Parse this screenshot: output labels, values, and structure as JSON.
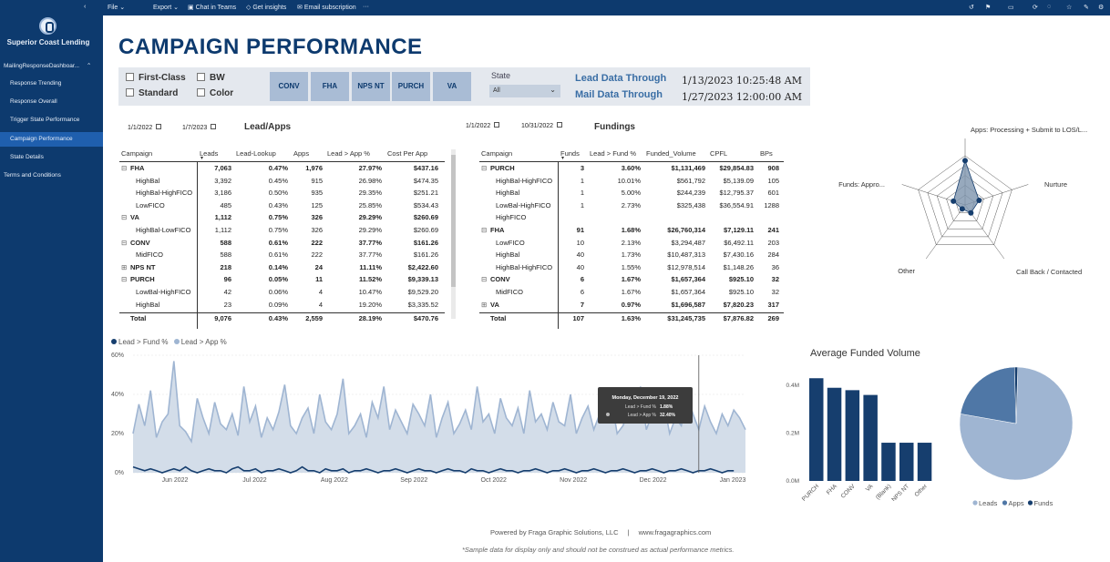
{
  "toolbar": {
    "file": "File",
    "export": "Export",
    "chat": "Chat in Teams",
    "insights": "Get insights",
    "email": "Email subscription",
    "more": "···"
  },
  "sidebar": {
    "brand": "Superior Coast Lending",
    "group": "MailingResponseDashboar...",
    "items": [
      "Response Trending",
      "Response Overall",
      "Trigger State Performance",
      "Campaign Performance",
      "State Details",
      "Terms and Conditions"
    ]
  },
  "page": {
    "title": "CAMPAIGN PERFORMANCE"
  },
  "filters": {
    "checks": [
      "First-Class",
      "Standard",
      "BW",
      "Color"
    ],
    "segments": [
      "CONV",
      "FHA",
      "NPS NT",
      "PURCH",
      "VA"
    ],
    "state_label": "State",
    "state_value": "All",
    "lead_label": "Lead Data Through",
    "lead_value": "1/13/2023 10:25:48 AM",
    "mail_label": "Mail Data Through",
    "mail_value": "1/27/2023 12:00:00 AM"
  },
  "leads_table": {
    "date_from": "1/1/2022",
    "date_to": "1/7/2023",
    "title": "Lead/Apps",
    "headers": [
      "Campaign",
      "Leads",
      "Lead-Lookup",
      "Apps",
      "Lead > App %",
      "Cost Per App"
    ],
    "rows": [
      {
        "c": "FHA",
        "v": [
          "7,063",
          "0.47%",
          "1,976",
          "27.97%",
          "$437.16"
        ],
        "b": true,
        "e": "⊟"
      },
      {
        "c": "HighBal",
        "v": [
          "3,392",
          "0.45%",
          "915",
          "26.98%",
          "$474.35"
        ],
        "b": false,
        "e": ""
      },
      {
        "c": "HighBal-HighFICO",
        "v": [
          "3,186",
          "0.50%",
          "935",
          "29.35%",
          "$251.21"
        ],
        "b": false,
        "e": ""
      },
      {
        "c": "LowFICO",
        "v": [
          "485",
          "0.43%",
          "125",
          "25.85%",
          "$534.43"
        ],
        "b": false,
        "e": ""
      },
      {
        "c": "VA",
        "v": [
          "1,112",
          "0.75%",
          "326",
          "29.29%",
          "$260.69"
        ],
        "b": true,
        "e": "⊟"
      },
      {
        "c": "HighBal-LowFICO",
        "v": [
          "1,112",
          "0.75%",
          "326",
          "29.29%",
          "$260.69"
        ],
        "b": false,
        "e": ""
      },
      {
        "c": "CONV",
        "v": [
          "588",
          "0.61%",
          "222",
          "37.77%",
          "$161.26"
        ],
        "b": true,
        "e": "⊟"
      },
      {
        "c": "MidFICO",
        "v": [
          "588",
          "0.61%",
          "222",
          "37.77%",
          "$161.26"
        ],
        "b": false,
        "e": ""
      },
      {
        "c": "NPS NT",
        "v": [
          "218",
          "0.14%",
          "24",
          "11.11%",
          "$2,422.60"
        ],
        "b": true,
        "e": "⊞"
      },
      {
        "c": "PURCH",
        "v": [
          "96",
          "0.05%",
          "11",
          "11.52%",
          "$9,339.13"
        ],
        "b": true,
        "e": "⊟"
      },
      {
        "c": "LowBal-HighFICO",
        "v": [
          "42",
          "0.06%",
          "4",
          "10.47%",
          "$9,529.20"
        ],
        "b": false,
        "e": ""
      },
      {
        "c": "HighBal",
        "v": [
          "23",
          "0.09%",
          "4",
          "19.20%",
          "$3,335.52"
        ],
        "b": false,
        "e": ""
      }
    ],
    "total": {
      "c": "Total",
      "v": [
        "9,076",
        "0.43%",
        "2,559",
        "28.19%",
        "$470.76"
      ]
    }
  },
  "fundings_table": {
    "date_from": "1/1/2022",
    "date_to": "10/31/2022",
    "title": "Fundings",
    "headers": [
      "Campaign",
      "Funds",
      "Lead > Fund %",
      "Funded_Volume",
      "CPFL",
      "BPs"
    ],
    "rows": [
      {
        "c": "PURCH",
        "v": [
          "3",
          "3.60%",
          "$1,131,469",
          "$29,854.83",
          "908"
        ],
        "b": true,
        "e": "⊟"
      },
      {
        "c": "HighBal-HighFICO",
        "v": [
          "1",
          "10.01%",
          "$561,792",
          "$5,139.09",
          "105"
        ],
        "b": false,
        "e": ""
      },
      {
        "c": "HighBal",
        "v": [
          "1",
          "5.00%",
          "$244,239",
          "$12,795.37",
          "601"
        ],
        "b": false,
        "e": ""
      },
      {
        "c": "LowBal-HighFICO",
        "v": [
          "1",
          "2.73%",
          "$325,438",
          "$36,554.91",
          "1288"
        ],
        "b": false,
        "e": ""
      },
      {
        "c": "HighFICO",
        "v": [
          "",
          "",
          "",
          "",
          ""
        ],
        "b": false,
        "e": ""
      },
      {
        "c": "FHA",
        "v": [
          "91",
          "1.68%",
          "$26,760,314",
          "$7,129.11",
          "241"
        ],
        "b": true,
        "e": "⊟"
      },
      {
        "c": "LowFICO",
        "v": [
          "10",
          "2.13%",
          "$3,294,487",
          "$6,492.11",
          "203"
        ],
        "b": false,
        "e": ""
      },
      {
        "c": "HighBal",
        "v": [
          "40",
          "1.73%",
          "$10,487,313",
          "$7,430.16",
          "284"
        ],
        "b": false,
        "e": ""
      },
      {
        "c": "HighBal-HighFICO",
        "v": [
          "40",
          "1.55%",
          "$12,978,514",
          "$1,148.26",
          "36"
        ],
        "b": false,
        "e": ""
      },
      {
        "c": "CONV",
        "v": [
          "6",
          "1.67%",
          "$1,657,364",
          "$925.10",
          "32"
        ],
        "b": true,
        "e": "⊟"
      },
      {
        "c": "MidFICO",
        "v": [
          "6",
          "1.67%",
          "$1,657,364",
          "$925.10",
          "32"
        ],
        "b": false,
        "e": ""
      },
      {
        "c": "VA",
        "v": [
          "7",
          "0.97%",
          "$1,696,587",
          "$7,820.23",
          "317"
        ],
        "b": true,
        "e": "⊞"
      }
    ],
    "total": {
      "c": "Total",
      "v": [
        "107",
        "1.63%",
        "$31,245,735",
        "$7,876.82",
        "269"
      ]
    }
  },
  "colors": {
    "dark": "#163e6e",
    "mid": "#4f77a6",
    "light": "#9fb5d2",
    "area": "#d3dde9"
  },
  "chart_data": [
    {
      "type": "line",
      "title": "",
      "legend": [
        "Lead > Fund %",
        "Lead > App %"
      ],
      "y_ticks": [
        "60%",
        "40%",
        "20%",
        "0%"
      ],
      "ylim": [
        0,
        60
      ],
      "x_ticks": [
        "Jun 2022",
        "Jul 2022",
        "Aug 2022",
        "Sep 2022",
        "Oct 2022",
        "Nov 2022",
        "Dec 2022",
        "Jan 2023"
      ],
      "series": [
        {
          "name": "Lead > App %",
          "values": [
            20,
            35,
            24,
            42,
            18,
            26,
            30,
            57,
            24,
            21,
            16,
            38,
            28,
            20,
            36,
            25,
            22,
            30,
            19,
            44,
            26,
            34,
            18,
            28,
            22,
            31,
            45,
            24,
            20,
            28,
            33,
            20,
            40,
            26,
            22,
            30,
            48,
            20,
            24,
            30,
            18,
            36,
            28,
            44,
            22,
            32,
            26,
            20,
            35,
            30,
            24,
            40,
            18,
            28,
            36,
            20,
            25,
            32,
            22,
            44,
            26,
            30,
            20,
            38,
            28,
            24,
            33,
            20,
            42,
            26,
            30,
            22,
            36,
            26,
            24,
            40,
            20,
            28,
            34,
            22,
            30,
            26,
            38,
            20,
            24,
            32,
            28,
            44,
            22,
            30,
            26,
            36,
            20,
            28,
            24,
            40,
            30,
            22,
            34,
            26,
            20,
            30,
            24,
            32,
            28,
            22
          ]
        },
        {
          "name": "Lead > Fund %",
          "values": [
            3,
            2,
            1,
            2,
            1,
            0,
            1,
            2,
            1,
            3,
            1,
            0,
            1,
            2,
            1,
            1,
            0,
            2,
            3,
            1,
            1,
            2,
            0,
            1,
            1,
            2,
            1,
            0,
            1,
            3,
            1,
            1,
            0,
            2,
            1,
            1,
            2,
            0,
            1,
            1,
            2,
            1,
            0,
            1,
            1,
            2,
            1,
            0,
            1,
            2,
            1,
            1,
            0,
            1,
            2,
            1,
            1,
            0,
            2,
            1,
            1,
            0,
            1,
            2,
            1,
            1,
            0,
            1,
            1,
            2,
            1,
            0,
            1,
            1,
            2,
            1,
            0,
            1,
            1,
            2,
            1,
            0,
            1,
            1,
            2,
            1,
            0,
            1,
            1,
            2,
            1,
            0,
            1,
            1,
            2,
            1,
            0,
            1,
            1,
            2,
            1,
            0,
            1,
            1
          ]
        }
      ],
      "tooltip": {
        "date": "Monday, December 19, 2022",
        "rows": [
          {
            "label": "Lead > Fund %",
            "value": "1.88%"
          },
          {
            "label": "Lead > App %",
            "value": "32.40%"
          }
        ]
      }
    },
    {
      "type": "radar",
      "axes": [
        "Apps: Processing + Submit to LOS/L...",
        "Nurture",
        "Call Back / Contacted",
        "Other",
        "Funds: Appro..."
      ],
      "values": [
        0.9,
        0.3,
        0.2,
        0.1,
        0.25
      ]
    },
    {
      "type": "bar",
      "title": "Average Funded Volume",
      "categories": [
        "PURCH",
        "FHA",
        "CONV",
        "VA",
        "(Blank)",
        "NPS NT",
        "Other"
      ],
      "values": [
        0.43,
        0.39,
        0.38,
        0.36,
        0.16,
        0.16,
        0.16
      ],
      "y_ticks": [
        "0.4M",
        "0.2M",
        "0.0M"
      ],
      "ylim": [
        0,
        0.45
      ]
    },
    {
      "type": "pie",
      "legend": [
        "Leads",
        "Apps",
        "Funds"
      ],
      "values": [
        9076,
        2559,
        107
      ]
    }
  ],
  "footer": {
    "powered": "Powered by Fraga Graphic Solutions, LLC",
    "sep": "|",
    "url": "www.fragagraphics.com",
    "note": "*Sample data for display only and should not be construed as actual performance metrics."
  }
}
